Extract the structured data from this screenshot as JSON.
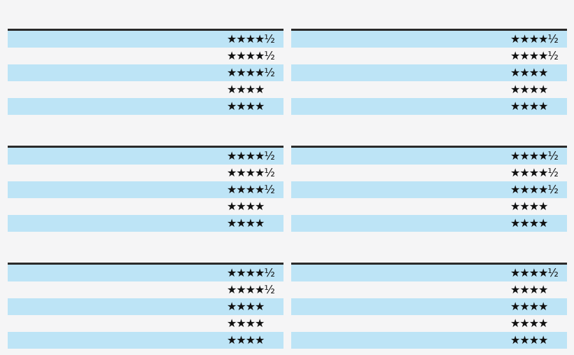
{
  "panels": [
    {
      "rows": [
        "★★★★½",
        "★★★★½",
        "★★★★½",
        "★★★★",
        "★★★★"
      ]
    },
    {
      "rows": [
        "★★★★½",
        "★★★★½",
        "★★★★",
        "★★★★",
        "★★★★"
      ]
    },
    {
      "rows": [
        "★★★★½",
        "★★★★½",
        "★★★★½",
        "★★★★",
        "★★★★"
      ]
    },
    {
      "rows": [
        "★★★★½",
        "★★★★½",
        "★★★★½",
        "★★★★",
        "★★★★"
      ]
    },
    {
      "rows": [
        "★★★★½",
        "★★★★½",
        "★★★★",
        "★★★★",
        "★★★★"
      ]
    },
    {
      "rows": [
        "★★★★½",
        "★★★★",
        "★★★★",
        "★★★★",
        "★★★★"
      ]
    }
  ]
}
